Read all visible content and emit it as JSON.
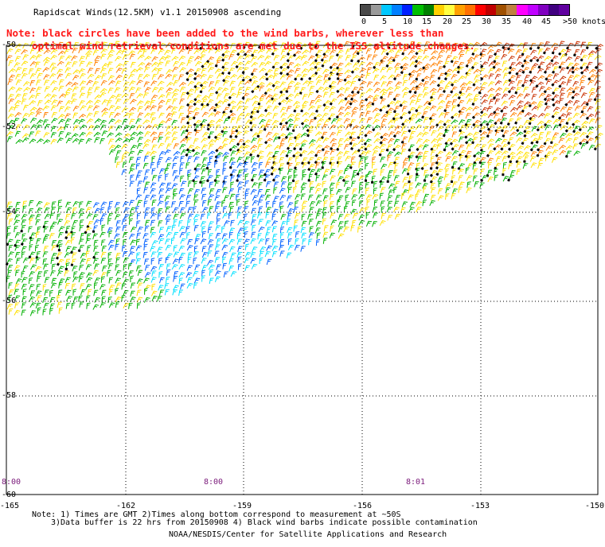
{
  "title": "Rapidscat Winds(12.5KM) v1.1 20150908 ascending",
  "note": {
    "line1": "Note: black circles have been added to the wind barbs, wherever less than",
    "line2": "optimal wind retrieval conditions are met due to the ISS altitude changes."
  },
  "speed_scale": {
    "labels": [
      "0",
      "5",
      "10",
      "15",
      "20",
      "25",
      "30",
      "35",
      "40",
      "45",
      ">50 knots"
    ],
    "colors": [
      "#4a4a4a",
      "#9a9a9a",
      "#00c8ff",
      "#0080ff",
      "#0020ff",
      "#00c000",
      "#008000",
      "#ffd000",
      "#ffff40",
      "#ffa000",
      "#ff7000",
      "#ff0000",
      "#c00000",
      "#a05000",
      "#c08040",
      "#ff00ff",
      "#c000ff",
      "#8000c0",
      "#400080",
      "#6000a0"
    ]
  },
  "axes": {
    "lat_labels": [
      "-50",
      "-52",
      "-54",
      "-56",
      "-58",
      "-60"
    ],
    "lon_labels": [
      "-165",
      "-162",
      "-159",
      "-156",
      "-153",
      "-150"
    ],
    "time_labels": [
      "8:00",
      "8:00",
      "8:01"
    ]
  },
  "footnotes": {
    "line1": "Note: 1) Times are GMT 2)Times along bottom correspond to measurement at ~50S",
    "line2": "3)Data buffer is 22 hrs from 20150908 4) Black wind barbs indicate possible contamination",
    "credit": "NOAA/NESDIS/Center for Satellite Applications and Research"
  },
  "map_data": {
    "lat_range": [
      -60,
      -50
    ],
    "lon_range": [
      -165,
      -150
    ],
    "grid": true,
    "barb_colors": {
      "calm": "#00e0ff",
      "light": "#0060ff",
      "moderate": "#00b000",
      "fresh": "#ffe000",
      "strong": "#ff8000",
      "gale": "#c83000",
      "flagged": "#000000"
    }
  }
}
